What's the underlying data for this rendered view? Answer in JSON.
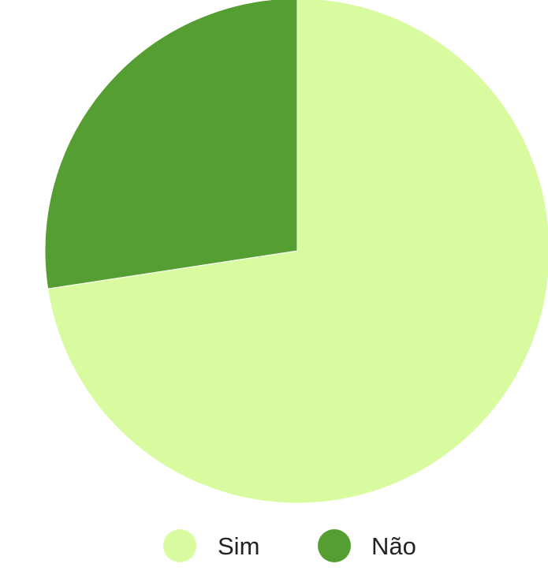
{
  "chart_data": {
    "type": "pie",
    "categories": [
      "Sim",
      "Não"
    ],
    "values": [
      72.6,
      27.4
    ],
    "colors": [
      "#d9fb9f",
      "#559e32"
    ],
    "legend_position": "bottom",
    "start_angle": "top",
    "direction": "clockwise"
  }
}
